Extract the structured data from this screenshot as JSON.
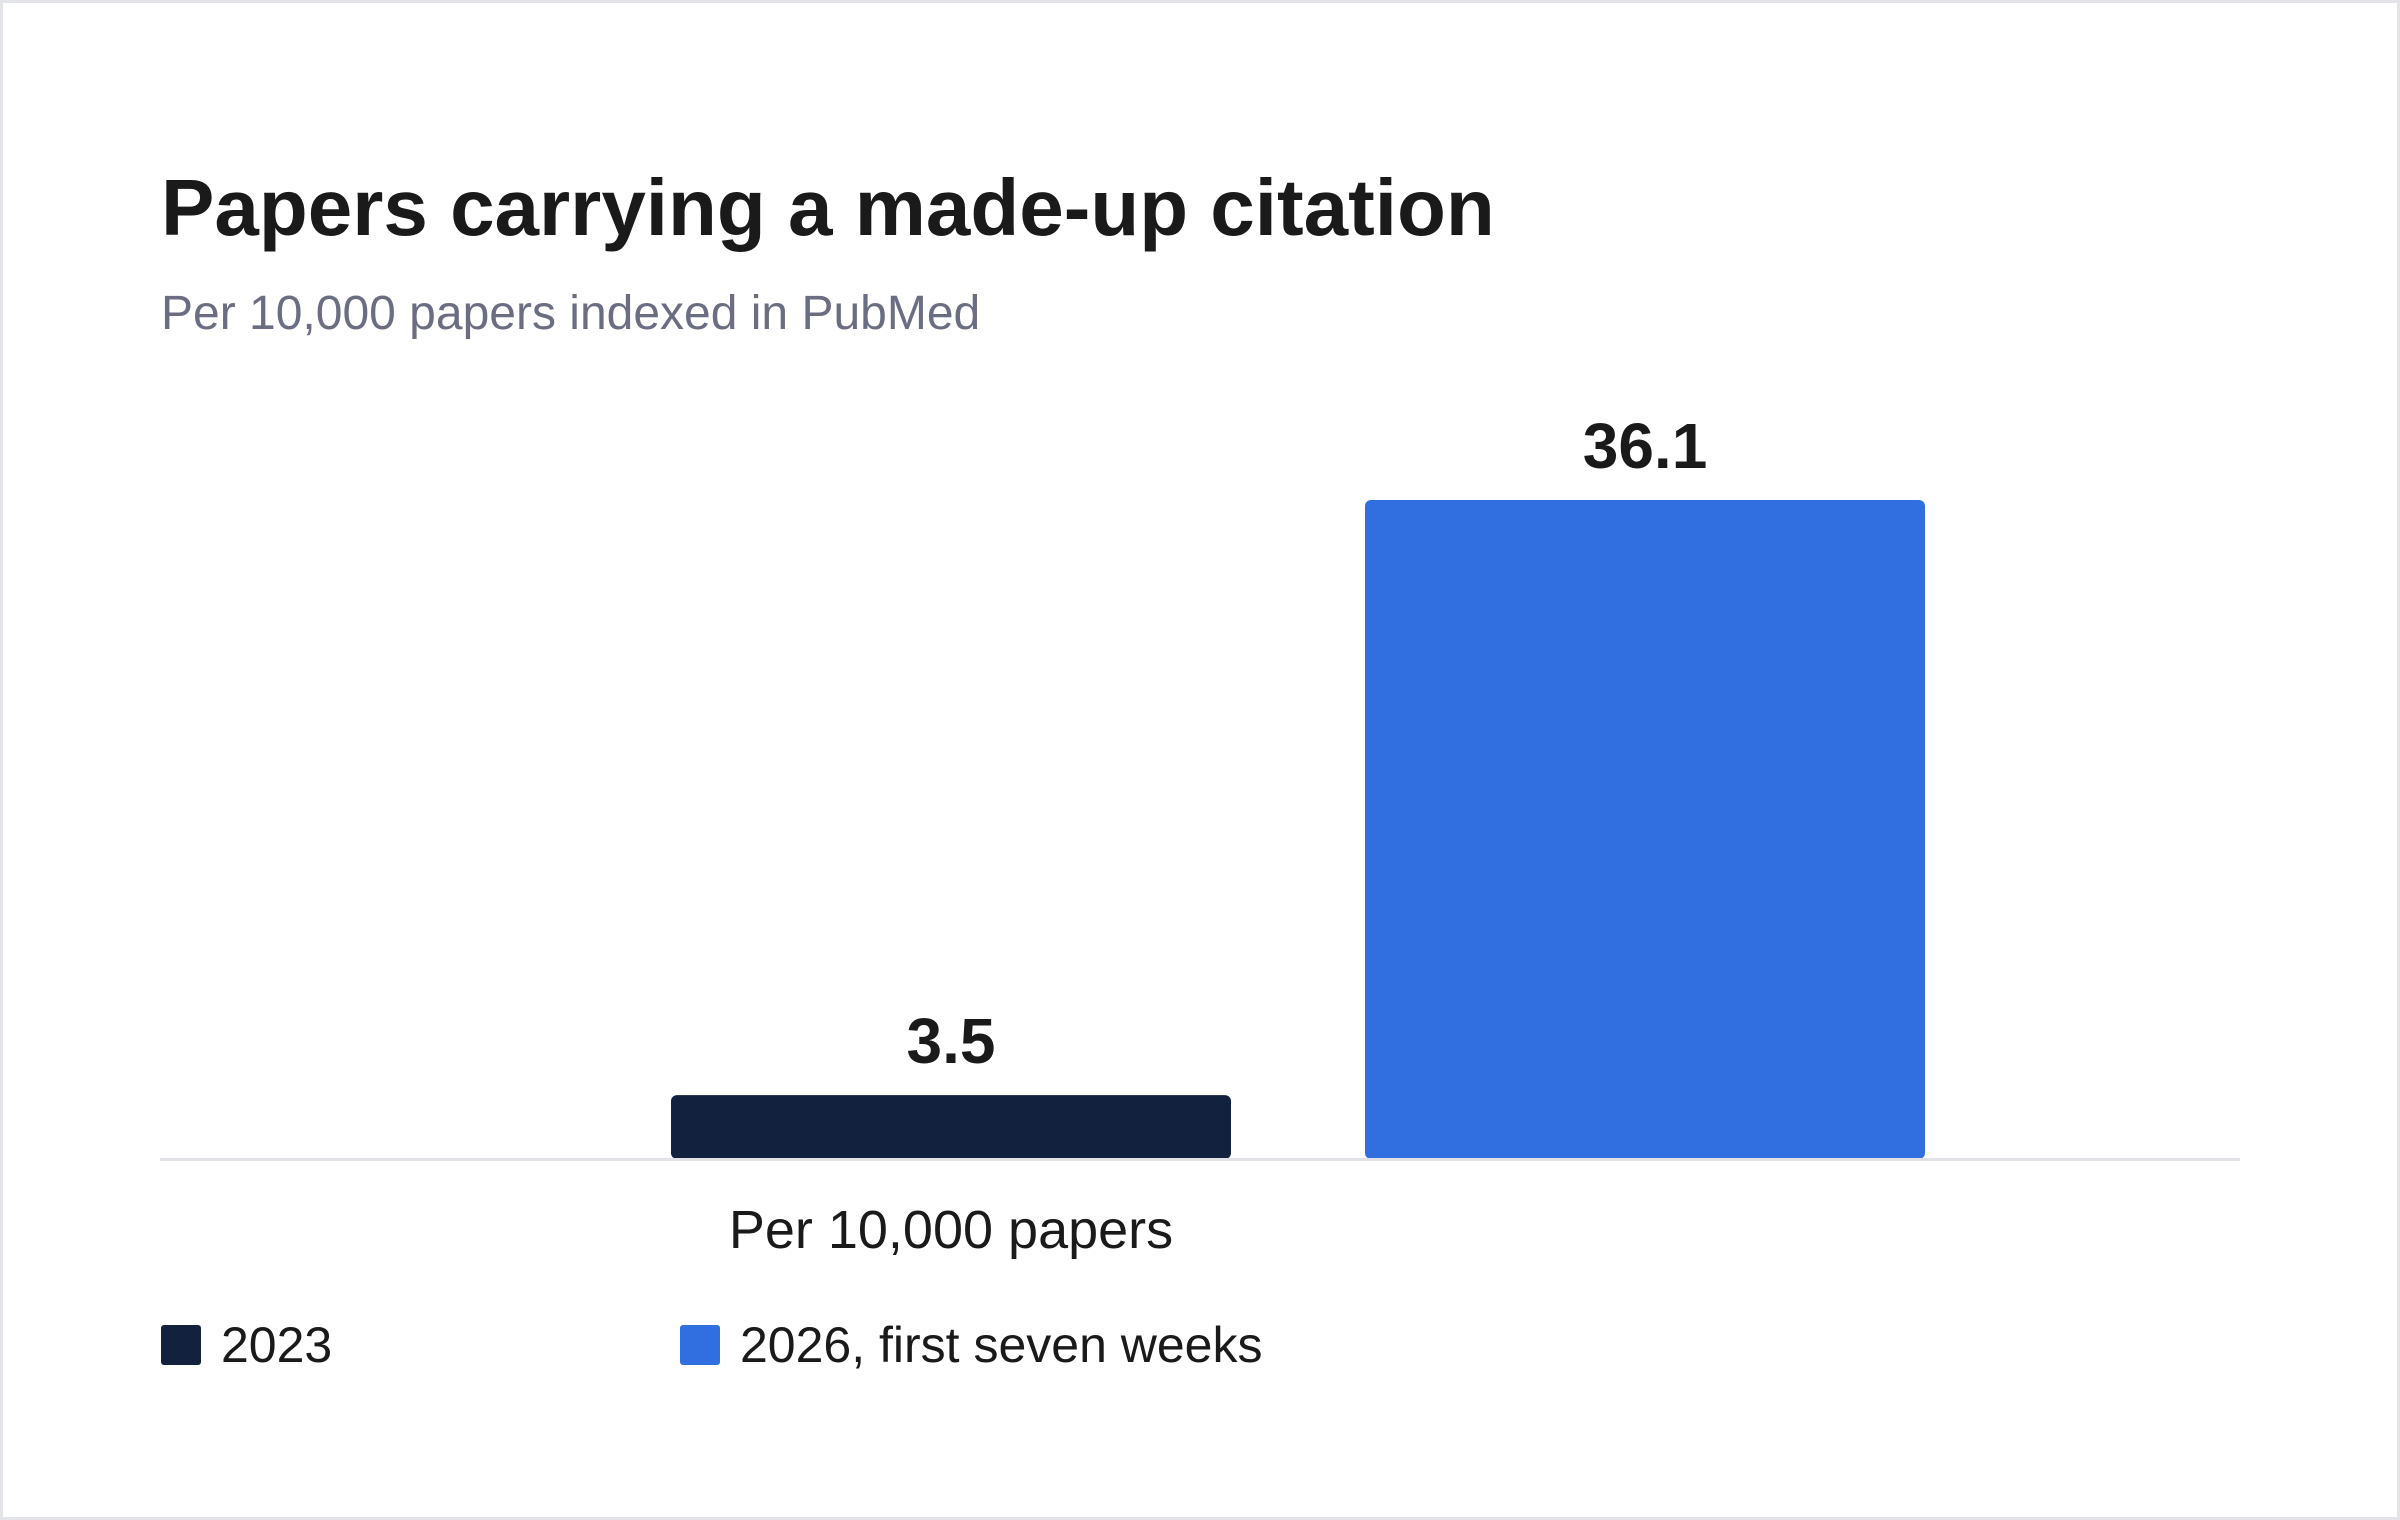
{
  "chart_data": {
    "type": "bar",
    "title": "Papers carrying a made-up citation",
    "subtitle": "Per 10,000 papers indexed in PubMed",
    "categories": [
      "Per 10,000 papers"
    ],
    "series": [
      {
        "name": "2023",
        "values": [
          3.5
        ],
        "color": "#12213d"
      },
      {
        "name": "2026, first seven weeks",
        "values": [
          36.1
        ],
        "color": "#316fe0"
      }
    ],
    "ylim": [
      0,
      36.1
    ],
    "grid": false,
    "legend_position": "bottom-left"
  }
}
